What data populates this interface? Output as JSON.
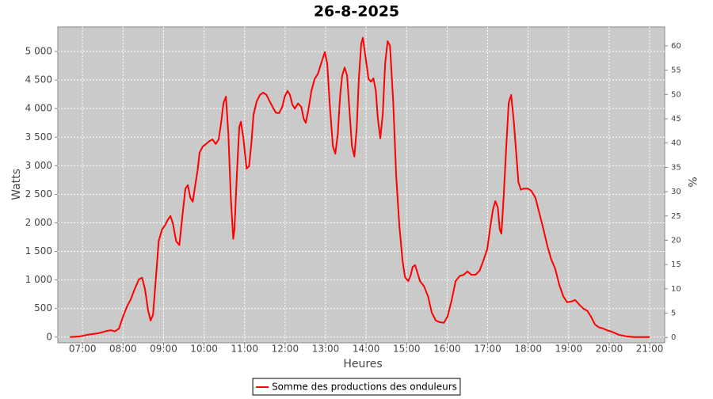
{
  "chart_data": {
    "type": "line",
    "title": "26-8-2025",
    "x_label": "Heures",
    "y_label": "Watts",
    "y2_label": "%",
    "xlim": [
      6.39,
      21.37
    ],
    "xticks": [
      {
        "value": 7,
        "label": "07:00"
      },
      {
        "value": 8,
        "label": "08:00"
      },
      {
        "value": 9,
        "label": "09:00"
      },
      {
        "value": 10,
        "label": "10:00"
      },
      {
        "value": 11,
        "label": "11:00"
      },
      {
        "value": 12,
        "label": "12:00"
      },
      {
        "value": 13,
        "label": "13:00"
      },
      {
        "value": 14,
        "label": "14:00"
      },
      {
        "value": 15,
        "label": "15:00"
      },
      {
        "value": 16,
        "label": "16:00"
      },
      {
        "value": 17,
        "label": "17:00"
      },
      {
        "value": 18,
        "label": "18:00"
      },
      {
        "value": 19,
        "label": "19:00"
      },
      {
        "value": 20,
        "label": "20:00"
      },
      {
        "value": 21,
        "label": "21:00"
      }
    ],
    "ylim": [
      -100,
      5430
    ],
    "yticks": [
      0,
      500,
      {
        "value": 1000,
        "label": "1 000"
      },
      {
        "value": 1500,
        "label": "1 500"
      },
      {
        "value": 2000,
        "label": "2 000"
      },
      {
        "value": 2500,
        "label": "2 500"
      },
      {
        "value": 3000,
        "label": "3 000"
      },
      {
        "value": 3500,
        "label": "3 500"
      },
      {
        "value": 4000,
        "label": "4 000"
      },
      {
        "value": 4500,
        "label": "4 500"
      },
      {
        "value": 5000,
        "label": "5 000"
      }
    ],
    "y2lim": [
      -1.1,
      63.9
    ],
    "y2ticks": [
      0,
      5,
      10,
      15,
      20,
      25,
      30,
      35,
      40,
      45,
      50,
      55,
      60
    ],
    "grid": true,
    "legend_position": "bottom",
    "background": "#cacaca",
    "series": [
      {
        "name": "Somme des productions des onduleurs",
        "color": "#ff0000",
        "x": [
          6.69,
          6.92,
          7.12,
          7.41,
          7.61,
          7.7,
          7.8,
          7.9,
          8.0,
          8.1,
          8.19,
          8.29,
          8.39,
          8.47,
          8.54,
          8.62,
          8.68,
          8.74,
          8.82,
          8.88,
          8.96,
          9.03,
          9.11,
          9.17,
          9.23,
          9.31,
          9.39,
          9.46,
          9.54,
          9.6,
          9.66,
          9.72,
          9.78,
          9.84,
          9.89,
          9.97,
          10.05,
          10.13,
          10.21,
          10.29,
          10.36,
          10.42,
          10.48,
          10.54,
          10.6,
          10.66,
          10.72,
          10.75,
          10.81,
          10.87,
          10.91,
          10.97,
          11.05,
          11.11,
          11.17,
          11.22,
          11.3,
          11.38,
          11.46,
          11.54,
          11.61,
          11.69,
          11.77,
          11.85,
          11.93,
          11.99,
          12.06,
          12.12,
          12.18,
          12.24,
          12.32,
          12.4,
          12.46,
          12.51,
          12.57,
          12.65,
          12.73,
          12.81,
          12.89,
          12.98,
          13.04,
          13.1,
          13.18,
          13.24,
          13.3,
          13.36,
          13.41,
          13.47,
          13.53,
          13.59,
          13.65,
          13.71,
          13.77,
          13.82,
          13.88,
          13.92,
          13.98,
          14.06,
          14.12,
          14.18,
          14.24,
          14.29,
          14.35,
          14.41,
          14.47,
          14.53,
          14.59,
          14.67,
          14.74,
          14.82,
          14.9,
          14.96,
          15.04,
          15.1,
          15.15,
          15.21,
          15.27,
          15.33,
          15.43,
          15.53,
          15.62,
          15.72,
          15.82,
          15.92,
          16.01,
          16.11,
          16.21,
          16.31,
          16.41,
          16.5,
          16.6,
          16.7,
          16.8,
          16.89,
          16.99,
          17.07,
          17.13,
          17.19,
          17.25,
          17.3,
          17.34,
          17.4,
          17.46,
          17.52,
          17.58,
          17.64,
          17.7,
          17.76,
          17.82,
          17.89,
          17.99,
          18.08,
          18.18,
          18.28,
          18.38,
          18.48,
          18.57,
          18.67,
          18.77,
          18.87,
          18.96,
          19.06,
          19.16,
          19.26,
          19.36,
          19.46,
          19.55,
          19.65,
          19.75,
          19.85,
          19.94,
          20.04,
          20.14,
          20.24,
          20.41,
          20.61,
          21.0
        ],
        "values": [
          0,
          10,
          40,
          70,
          110,
          120,
          100,
          150,
          360,
          540,
          660,
          845,
          1010,
          1040,
          845,
          460,
          290,
          390,
          1120,
          1680,
          1880,
          1950,
          2060,
          2120,
          1990,
          1680,
          1610,
          2090,
          2600,
          2660,
          2440,
          2370,
          2650,
          2920,
          3230,
          3340,
          3380,
          3430,
          3460,
          3380,
          3460,
          3750,
          4100,
          4210,
          3550,
          2440,
          1720,
          1880,
          2850,
          3680,
          3770,
          3480,
          2950,
          2990,
          3410,
          3890,
          4130,
          4240,
          4280,
          4240,
          4140,
          4030,
          3930,
          3920,
          4030,
          4210,
          4310,
          4240,
          4070,
          4000,
          4090,
          4030,
          3820,
          3750,
          3960,
          4310,
          4520,
          4610,
          4790,
          4990,
          4790,
          4100,
          3340,
          3210,
          3550,
          4240,
          4580,
          4720,
          4580,
          3960,
          3340,
          3160,
          3680,
          4520,
          5140,
          5240,
          4930,
          4520,
          4470,
          4530,
          4310,
          3820,
          3480,
          3890,
          4790,
          5180,
          5100,
          4100,
          2850,
          1950,
          1330,
          1050,
          980,
          1080,
          1230,
          1260,
          1120,
          980,
          890,
          710,
          430,
          290,
          260,
          250,
          360,
          640,
          980,
          1070,
          1090,
          1150,
          1090,
          1090,
          1160,
          1330,
          1540,
          1950,
          2230,
          2380,
          2270,
          1880,
          1810,
          2510,
          3340,
          4100,
          4240,
          3820,
          3270,
          2710,
          2580,
          2600,
          2600,
          2560,
          2440,
          2160,
          1880,
          1580,
          1360,
          1190,
          910,
          710,
          610,
          620,
          650,
          570,
          500,
          460,
          360,
          220,
          170,
          150,
          120,
          100,
          70,
          40,
          15,
          0,
          0
        ]
      }
    ]
  }
}
